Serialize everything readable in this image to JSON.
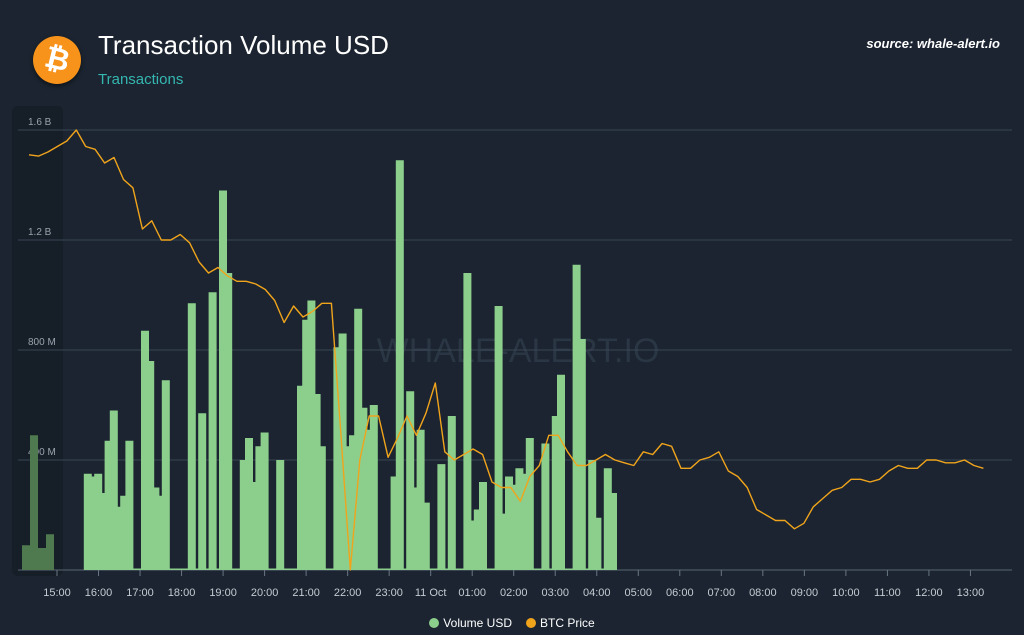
{
  "header": {
    "logo_icon": "bitcoin-icon",
    "logo_glyph": "₿",
    "title": "Transaction Volume USD",
    "subtitle": "Transactions",
    "source": "source: whale-alert.io",
    "watermark": "WHALE-ALERT.IO"
  },
  "colors": {
    "volume": "#8ccf8c",
    "price": "#f0a41c",
    "grid": "#3a4654",
    "text": "#ffffff",
    "accent": "#35b6b0",
    "brand": "#f7931a"
  },
  "chart_data": {
    "type": "bar",
    "title": "Transaction Volume USD",
    "subtitle": "Transactions",
    "xlabel": "",
    "ylabel": "",
    "ylim": [
      0,
      1600000000
    ],
    "yticks": [
      "0",
      "400 M",
      "800 M",
      "1.2 B",
      "1.6 B"
    ],
    "ytick_values": [
      0,
      400000000,
      800000000,
      1200000000,
      1600000000
    ],
    "x_start": "15:00",
    "slot_minutes": 10,
    "xticks": [
      {
        "label": "15:00",
        "slot": 0
      },
      {
        "label": "16:00",
        "slot": 6
      },
      {
        "label": "17:00",
        "slot": 12
      },
      {
        "label": "18:00",
        "slot": 18
      },
      {
        "label": "19:00",
        "slot": 24
      },
      {
        "label": "20:00",
        "slot": 30
      },
      {
        "label": "21:00",
        "slot": 36
      },
      {
        "label": "22:00",
        "slot": 42
      },
      {
        "label": "23:00",
        "slot": 48
      },
      {
        "label": "11 Oct",
        "slot": 54
      },
      {
        "label": "01:00",
        "slot": 60
      },
      {
        "label": "02:00",
        "slot": 66
      },
      {
        "label": "03:00",
        "slot": 72
      },
      {
        "label": "04:00",
        "slot": 78
      },
      {
        "label": "05:00",
        "slot": 84
      },
      {
        "label": "06:00",
        "slot": 90
      },
      {
        "label": "07:00",
        "slot": 96
      },
      {
        "label": "08:00",
        "slot": 102
      },
      {
        "label": "09:00",
        "slot": 108
      },
      {
        "label": "10:00",
        "slot": 114
      },
      {
        "label": "11:00",
        "slot": 120
      },
      {
        "label": "12:00",
        "slot": 126
      },
      {
        "label": "13:00",
        "slot": 132
      }
    ],
    "legend_position": "bottom-center",
    "grid": true,
    "series": [
      {
        "name": "Volume USD",
        "kind": "bar",
        "values_millions": [
          90,
          490,
          80,
          130,
          350,
          340,
          350,
          280,
          470,
          580,
          230,
          270,
          470,
          0,
          0,
          870,
          760,
          300,
          270,
          690,
          0,
          0,
          0,
          0,
          970,
          0,
          570,
          0,
          1010,
          0,
          1380,
          1080,
          0,
          0,
          400,
          480,
          320,
          450,
          500,
          0,
          0,
          400,
          0,
          0,
          0,
          670,
          910,
          980,
          640,
          450,
          0,
          0,
          810,
          860,
          450,
          490,
          950,
          590,
          510,
          600,
          0,
          0,
          0,
          340,
          1490,
          0,
          650,
          300,
          510,
          245,
          0,
          0,
          385,
          0,
          560,
          0,
          0,
          1080,
          180,
          220,
          320,
          0,
          0,
          960,
          205,
          340,
          310,
          370,
          350,
          480,
          0,
          0,
          460,
          0,
          560,
          710,
          0,
          0,
          1110,
          840,
          0,
          400,
          190,
          0,
          370,
          280
        ]
      },
      {
        "name": "BTC Price",
        "kind": "line",
        "y_range_label_units": "M",
        "values_millions": [
          1510,
          1505,
          1520,
          1540,
          1560,
          1600,
          1540,
          1530,
          1480,
          1500,
          1420,
          1390,
          1240,
          1270,
          1200,
          1200,
          1220,
          1190,
          1120,
          1080,
          1100,
          1070,
          1050,
          1050,
          1040,
          1020,
          980,
          900,
          960,
          920,
          940,
          970,
          970,
          500,
          0,
          400,
          560,
          560,
          410,
          480,
          560,
          490,
          570,
          680,
          430,
          400,
          420,
          440,
          420,
          320,
          300,
          300,
          250,
          340,
          380,
          490,
          490,
          430,
          380,
          380,
          400,
          420,
          400,
          390,
          380,
          430,
          420,
          460,
          450,
          370,
          370,
          400,
          410,
          430,
          360,
          340,
          300,
          220,
          200,
          180,
          180,
          150,
          170,
          230,
          260,
          290,
          300,
          330,
          330,
          320,
          330,
          360,
          380,
          370,
          370,
          400,
          400,
          390,
          390,
          400,
          380,
          370
        ]
      }
    ]
  },
  "legend": {
    "volume_label": "Volume USD",
    "price_label": "BTC Price"
  }
}
